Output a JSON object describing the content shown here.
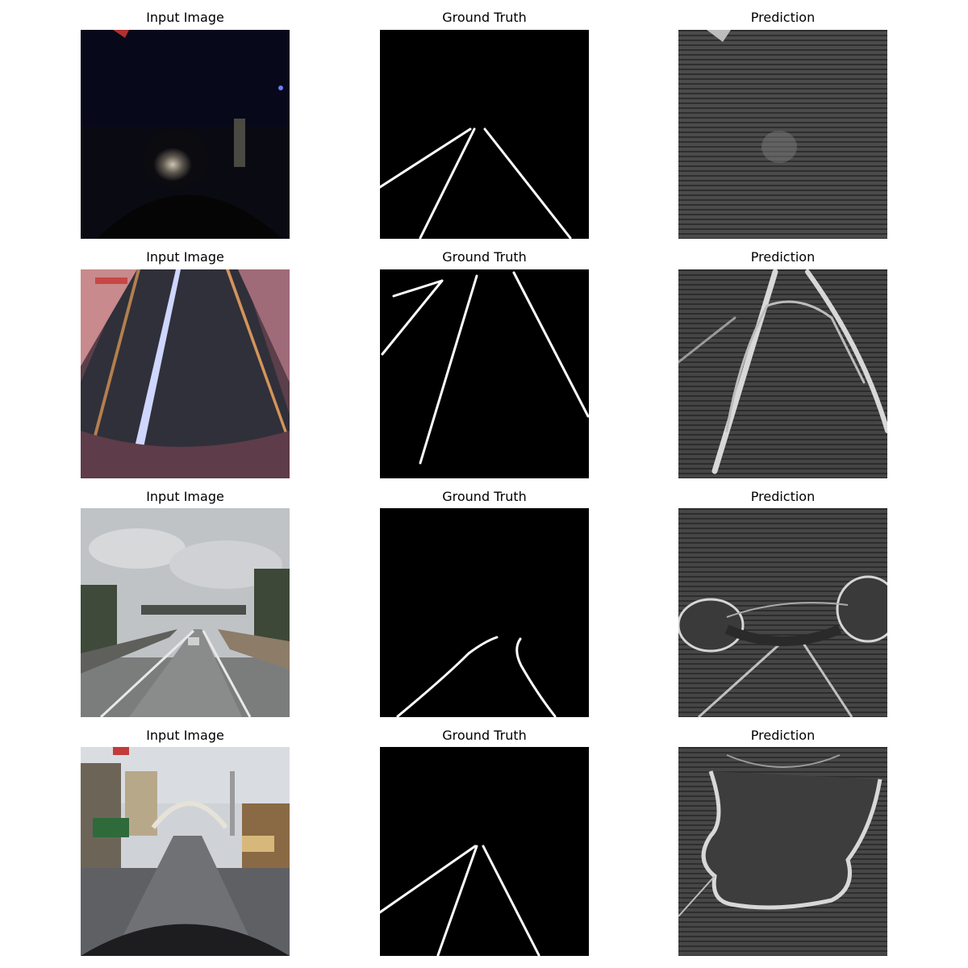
{
  "columns": [
    "Input Image",
    "Ground Truth",
    "Prediction"
  ],
  "rows": [
    {
      "input_title": "Input Image",
      "gt_title": "Ground Truth",
      "pred_title": "Prediction"
    },
    {
      "input_title": "Input Image",
      "gt_title": "Ground Truth",
      "pred_title": "Prediction"
    },
    {
      "input_title": "Input Image",
      "gt_title": "Ground Truth",
      "pred_title": "Prediction"
    },
    {
      "input_title": "Input Image",
      "gt_title": "Ground Truth",
      "pred_title": "Prediction"
    }
  ],
  "colors": {
    "background": "#ffffff",
    "mask_background": "#000000",
    "lane_line": "#ffffff"
  }
}
